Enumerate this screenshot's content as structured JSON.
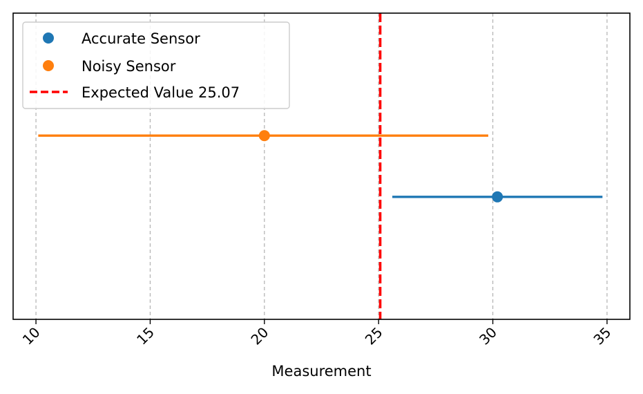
{
  "chart_data": {
    "type": "scatter",
    "xlabel": "Measurement",
    "ylabel": "",
    "xlim": [
      9,
      36
    ],
    "ylim": [
      0,
      1
    ],
    "xticks": [
      "10",
      "15",
      "20",
      "25",
      "30",
      "35"
    ],
    "xtick_values": [
      10,
      15,
      20,
      25,
      30,
      35
    ],
    "xtick_rotation": 45,
    "grid": "x-dashed",
    "legend_position": "upper-left",
    "series": [
      {
        "name": "Accurate Sensor",
        "x": 30.2,
        "y": 0.4,
        "xerr_low": 25.6,
        "xerr_high": 34.8,
        "color": "#1f77b4"
      },
      {
        "name": "Noisy Sensor",
        "x": 20.0,
        "y": 0.6,
        "xerr_low": 10.1,
        "xerr_high": 29.8,
        "color": "#ff7f0e"
      }
    ],
    "reference_line": {
      "name": "Expected Value 25.07",
      "x": 25.07,
      "color": "#ff0000",
      "style": "dashed"
    }
  }
}
